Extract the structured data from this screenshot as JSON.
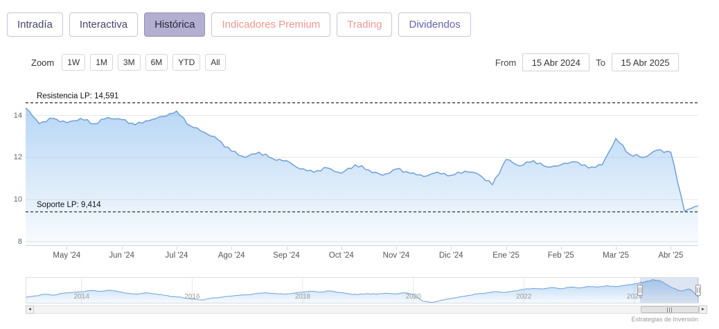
{
  "tabs": [
    {
      "label": "Intradía"
    },
    {
      "label": "Interactiva"
    },
    {
      "label": "Histórica"
    },
    {
      "label": "Indicadores Premium"
    },
    {
      "label": "Trading"
    },
    {
      "label": "Dividendos"
    }
  ],
  "toolbar": {
    "zoom_label": "Zoom",
    "zoom_buttons": [
      "1W",
      "1M",
      "3M",
      "6M",
      "YTD",
      "All"
    ],
    "from_label": "From",
    "from_value": "15 Abr 2024",
    "to_label": "To",
    "to_value": "15 Abr 2025"
  },
  "icons": {
    "scroll_left": "◄",
    "scroll_right": "►"
  },
  "credit": "Estrategias de Inversión",
  "colors": {
    "series_line": "#6f9fd8",
    "series_fill_top": "rgba(124,181,236,0.55)",
    "series_fill_bottom": "rgba(124,181,236,0.04)",
    "grid_line": "#e6e6e6",
    "axis_line": "#ccd6eb",
    "annotation_line": "#000000",
    "selected_tab_bg": "#b2afd0",
    "premium_text": "#f0968c",
    "trading_text": "#e99a8f",
    "dividends_text": "#6561a9",
    "navigator_mask": "rgba(102,133,194,0.22)"
  },
  "chart_data": {
    "type": "area",
    "title": "",
    "xlabel": "",
    "ylabel": "",
    "ylim": [
      7.8,
      15.2
    ],
    "y_ticks": [
      8,
      10,
      12,
      14
    ],
    "grid": "horizontal",
    "legend": "none",
    "x_tick_labels": [
      "May '24",
      "Jun '24",
      "Jul '24",
      "Ago '24",
      "Sep '24",
      "Oct '24",
      "Nov '24",
      "Dic '24",
      "Ene '25",
      "Feb '25",
      "Mar '25",
      "Abr '25"
    ],
    "x_tick_indices": [
      3,
      7,
      11,
      15,
      19,
      23,
      27,
      31,
      35,
      39,
      43,
      47
    ],
    "values": [
      14.35,
      13.6,
      13.85,
      13.65,
      13.85,
      13.6,
      13.9,
      13.8,
      13.55,
      13.75,
      13.95,
      14.2,
      13.5,
      13.2,
      12.85,
      12.3,
      12.0,
      12.25,
      11.95,
      11.85,
      11.45,
      11.3,
      11.5,
      11.25,
      11.65,
      11.4,
      11.15,
      11.45,
      11.25,
      11.1,
      11.3,
      11.15,
      11.35,
      11.2,
      10.7,
      11.9,
      11.6,
      11.85,
      11.55,
      11.65,
      11.8,
      11.5,
      11.65,
      12.9,
      12.15,
      12.0,
      12.35,
      12.25,
      9.45,
      9.7
    ],
    "annotations": [
      {
        "label": "Resistencia LP: 14,591",
        "value": 14.591,
        "style": "dashed"
      },
      {
        "label": "Soporte LP: 9,414",
        "value": 9.414,
        "style": "dashed"
      }
    ],
    "navigator": {
      "type": "area",
      "ylim": [
        7.8,
        14.8
      ],
      "values": [
        9.6,
        10.0,
        10.4,
        10.2,
        10.7,
        10.9,
        11.1,
        11.4,
        11.2,
        11.5,
        11.1,
        10.7,
        10.4,
        10.8,
        10.5,
        10.1,
        9.8,
        9.5,
        9.1,
        8.9,
        9.3,
        9.6,
        9.9,
        10.1,
        10.3,
        10.6,
        10.8,
        10.6,
        10.4,
        10.7,
        11.0,
        11.2,
        11.0,
        11.3,
        10.9,
        10.5,
        10.3,
        10.6,
        10.4,
        10.7,
        10.5,
        10.8,
        10.4,
        8.6,
        8.2,
        8.8,
        9.2,
        9.7,
        10.1,
        10.5,
        10.8,
        11.1,
        10.9,
        11.3,
        11.7,
        12.0,
        11.8,
        12.2,
        11.9,
        12.3,
        12.1,
        12.5,
        12.3,
        12.7,
        12.4,
        12.8,
        13.2,
        13.6,
        14.3,
        13.8,
        12.2,
        11.3,
        11.8,
        9.6
      ],
      "year_labels": [
        "2014",
        "2016",
        "2018",
        "2020",
        "2022",
        "2024"
      ],
      "year_indices": [
        6,
        18,
        30,
        42,
        54,
        66
      ],
      "selection": {
        "start_frac": 0.912,
        "end_frac": 1.0
      }
    }
  }
}
